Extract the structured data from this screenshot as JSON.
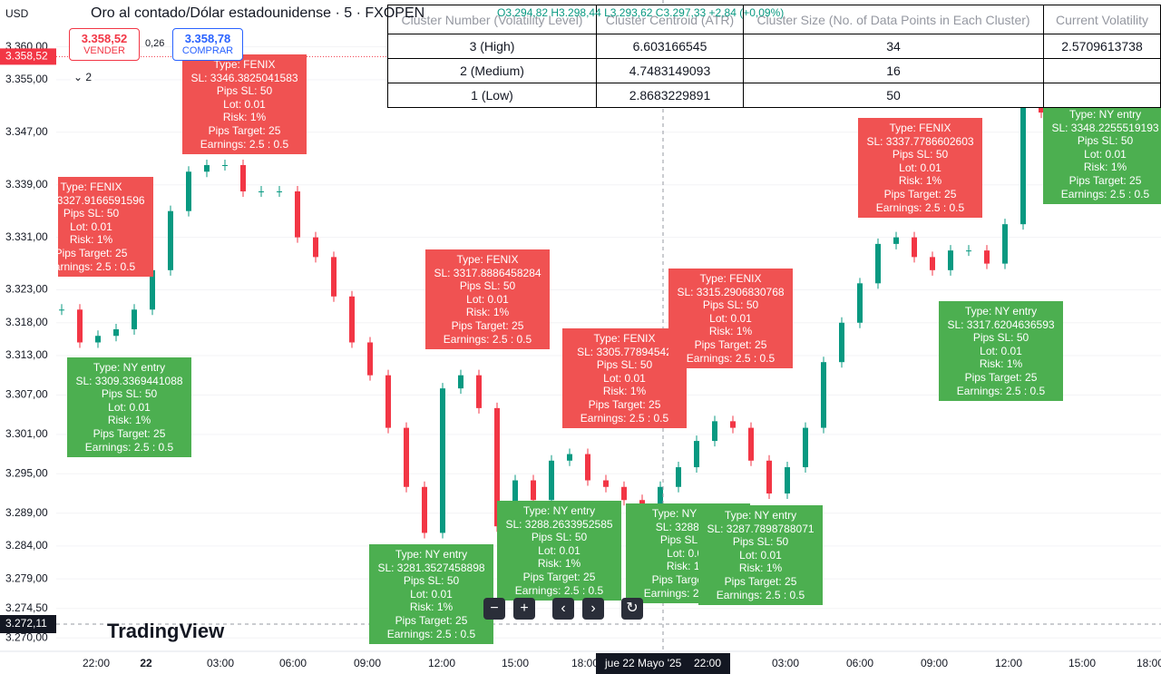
{
  "header": {
    "currency": "USD",
    "symbol": "Oro al contado/Dólar estadounidense · 5 · FXOPEN",
    "ohlc": "O3.294,82 H3.298,44 L3.293,62 C3.297,33 +2,84 (+0,09%)",
    "sell_price": "3.358,52",
    "sell_label": "VENDER",
    "spread": "0,26",
    "buy_price": "3.358,78",
    "buy_label": "COMPRAR",
    "quantity": "2"
  },
  "chart": {
    "ylim": [
      3267,
      3367
    ],
    "yticks": [
      {
        "value": 3360,
        "label": "3.360,00"
      },
      {
        "value": 3355,
        "label": "3.355,00"
      },
      {
        "value": 3347,
        "label": "3.347,00"
      },
      {
        "value": 3339,
        "label": "3.339,00"
      },
      {
        "value": 3331,
        "label": "3.331,00"
      },
      {
        "value": 3323,
        "label": "3.323,00"
      },
      {
        "value": 3318,
        "label": "3.318,00"
      },
      {
        "value": 3313,
        "label": "3.313,00"
      },
      {
        "value": 3307,
        "label": "3.307,00"
      },
      {
        "value": 3301,
        "label": "3.301,00"
      },
      {
        "value": 3295,
        "label": "3.295,00"
      },
      {
        "value": 3289,
        "label": "3.289,00"
      },
      {
        "value": 3284,
        "label": "3.284,00"
      },
      {
        "value": 3279,
        "label": "3.279,00"
      },
      {
        "value": 3274.5,
        "label": "3.274,50"
      },
      {
        "value": 3270,
        "label": "3.270,00"
      }
    ],
    "closes": [
      3320,
      3315,
      3316,
      3317,
      3320,
      3326,
      3335,
      3341,
      3342,
      3342,
      3338,
      3338,
      3338,
      3331,
      3328,
      3322,
      3315,
      3310,
      3302,
      3293,
      3286,
      3308,
      3310,
      3305,
      3287,
      3294,
      3291,
      3297,
      3298,
      3294,
      3293,
      3291,
      3290,
      3293,
      3296,
      3300,
      3303,
      3302,
      3297,
      3292,
      3296,
      3302,
      3312,
      3318,
      3324,
      3330,
      3331,
      3328,
      3326,
      3329,
      3329,
      3327,
      3333,
      3352,
      3350,
      3346,
      3352,
      3356,
      3359,
      3357
    ],
    "current_price": {
      "value": 3358.52,
      "label": "3.358,52"
    },
    "crosshair_price": {
      "value": 3272.11,
      "label": "3.272,11"
    },
    "crosshair_date": "jue 22 Mayo '25",
    "crosshair_time": "22:00",
    "time_labels": [
      "22:00",
      "22",
      "03:00",
      "06:00",
      "09:00",
      "12:00",
      "15:00",
      "18:00",
      "03:00",
      "06:00",
      "09:00",
      "12:00",
      "15:00",
      "18:00"
    ]
  },
  "table": {
    "header": [
      "Cluster Number (Volatility Level)",
      "Cluster Centroid (ATR)",
      "Cluster Size (No. of Data Points in Each Cluster)",
      "Current Volatility"
    ],
    "rows": [
      [
        "3 (High)",
        "6.603166545",
        "34"
      ],
      [
        "2 (Medium)",
        "4.7483149093",
        "16"
      ],
      [
        "1 (Low)",
        "2.8683229891",
        "50"
      ]
    ],
    "current_volatility": "2.5709613738"
  },
  "annotations": [
    {
      "color": "#f05252",
      "lines": [
        "Type: FENIX",
        "SL: 3327.9166591596",
        "Pips SL: 50",
        "Lot: 0.01",
        "Risk: 1%",
        "Pips Target: 25",
        "Earnings: 2.5 : 0.5"
      ]
    },
    {
      "color": "#f05252",
      "lines": [
        "Type: FENIX",
        "SL: 3346.3825041583",
        "Pips SL: 50",
        "Lot: 0.01",
        "Risk: 1%",
        "Pips Target: 25",
        "Earnings: 2.5 : 0.5"
      ]
    },
    {
      "color": "#4caf50",
      "lines": [
        "Type: NY entry",
        "SL: 3309.3369441088",
        "Pips SL: 50",
        "Lot: 0.01",
        "Risk: 1%",
        "Pips Target: 25",
        "Earnings: 2.5 : 0.5"
      ]
    },
    {
      "color": "#f05252",
      "lines": [
        "Type: FENIX",
        "SL: 3317.8886458284",
        "Pips SL: 50",
        "Lot: 0.01",
        "Risk: 1%",
        "Pips Target: 25",
        "Earnings: 2.5 : 0.5"
      ]
    },
    {
      "color": "#4caf50",
      "lines": [
        "Type: NY entry",
        "SL: 3281.3527458898",
        "Pips SL: 50",
        "Lot: 0.01",
        "Risk: 1%",
        "Pips Target: 25",
        "Earnings: 2.5 : 0.5"
      ]
    },
    {
      "color": "#f05252",
      "lines": [
        "Type: FENIX",
        "SL: 3305.77894542",
        "Pips SL: 50",
        "Lot: 0.01",
        "Risk: 1%",
        "Pips Target: 25",
        "Earnings: 2.5 : 0.5"
      ]
    },
    {
      "color": "#f05252",
      "lines": [
        "Type: FENIX",
        "SL: 3315.2906830768",
        "Pips SL: 50",
        "Lot: 0.01",
        "Risk: 1%",
        "Pips Target: 25",
        "Earnings: 2.5 : 0.5"
      ]
    },
    {
      "color": "#4caf50",
      "lines": [
        "Type: NY entry",
        "SL: 3288.2633952585",
        "Pips SL: 50",
        "Lot: 0.01",
        "Risk: 1%",
        "Pips Target: 25",
        "Earnings: 2.5 : 0.5"
      ]
    },
    {
      "color": "#4caf50",
      "lines": [
        "Type: NY entry",
        "SL: 3288.329",
        "Pips SL: 50",
        "Lot: 0.01",
        "Risk: 1%",
        "Pips Target: 25",
        "Earnings: 2.5 : 0.5"
      ]
    },
    {
      "color": "#4caf50",
      "lines": [
        "Type: NY entry",
        "SL: 3287.7898788071",
        "Pips SL: 50",
        "Lot: 0.01",
        "Risk: 1%",
        "Pips Target: 25",
        "Earnings: 2.5 : 0.5"
      ]
    },
    {
      "color": "#f05252",
      "lines": [
        "Type: FENIX",
        "SL: 3337.7786602603",
        "Pips SL: 50",
        "Lot: 0.01",
        "Risk: 1%",
        "Pips Target: 25",
        "Earnings: 2.5 : 0.5"
      ]
    },
    {
      "color": "#4caf50",
      "lines": [
        "Type: NY entry",
        "SL: 3317.6204636593",
        "Pips SL: 50",
        "Lot: 0.01",
        "Risk: 1%",
        "Pips Target: 25",
        "Earnings: 2.5 : 0.5"
      ]
    },
    {
      "color": "#4caf50",
      "lines": [
        "Type: NY entry",
        "SL: 3348.2255519193",
        "Pips SL: 50",
        "Lot: 0.01",
        "Risk: 1%",
        "Pips Target: 25",
        "Earnings: 2.5 : 0.5"
      ]
    },
    {
      "color": "#f05252",
      "lines": [
        "Pips SL: 50"
      ]
    }
  ],
  "controls": [
    "−",
    "+",
    "‹",
    "›",
    "↻"
  ],
  "branding": "TradingView"
}
